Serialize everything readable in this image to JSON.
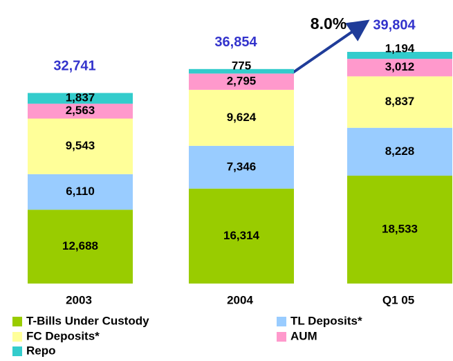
{
  "chart_data": {
    "type": "stacked_bar",
    "categories": [
      "2003",
      "2004",
      "Q1 05"
    ],
    "series": [
      {
        "name": "T-Bills Under Custody",
        "color": "#99cc00",
        "values": [
          12688,
          16314,
          18533
        ],
        "value_labels": [
          "12,688",
          "16,314",
          "18,533"
        ]
      },
      {
        "name": "TL Deposits*",
        "color": "#99ccff",
        "values": [
          6110,
          7346,
          8228
        ],
        "value_labels": [
          "6,110",
          "7,346",
          "8,228"
        ]
      },
      {
        "name": "FC Deposits*",
        "color": "#ffff99",
        "values": [
          9543,
          9624,
          8837
        ],
        "value_labels": [
          "9,543",
          "9,624",
          "8,837"
        ]
      },
      {
        "name": "AUM",
        "color": "#ff99cc",
        "values": [
          2563,
          2795,
          3012
        ],
        "value_labels": [
          "2,563",
          "2,795",
          "3,012"
        ]
      },
      {
        "name": "Repo",
        "color": "#33cccc",
        "values": [
          1837,
          775,
          1194
        ],
        "value_labels": [
          "1,837",
          "775",
          "1,194"
        ]
      }
    ],
    "totals": {
      "values": [
        32741,
        36854,
        39804
      ],
      "value_labels": [
        "32,741",
        "36,854",
        "39,804"
      ],
      "color": "#3333cc"
    },
    "annotation": "8.0%",
    "legend": "bottom"
  }
}
